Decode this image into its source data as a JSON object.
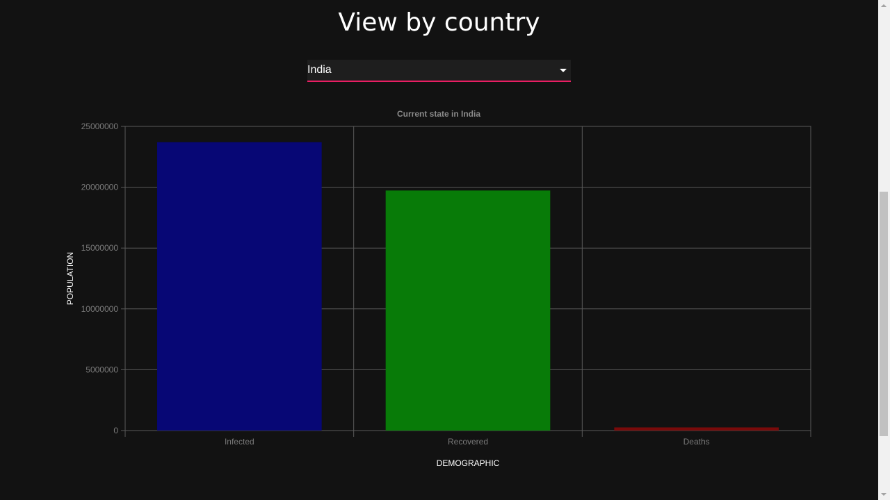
{
  "page": {
    "title": "View by country"
  },
  "country_select": {
    "value": "India"
  },
  "chart_data": {
    "type": "bar",
    "title": "Current state in India",
    "categories": [
      "Infected",
      "Recovered",
      "Deaths"
    ],
    "values": [
      23700000,
      19730000,
      258000
    ],
    "colors": [
      "#070775",
      "#087b08",
      "#7a0a0a"
    ],
    "xlabel": "DEMOGRAPHIC",
    "ylabel": "POPULATION",
    "ylim": [
      0,
      25000000
    ],
    "yticks": [
      0,
      5000000,
      10000000,
      15000000,
      20000000,
      25000000
    ],
    "ytick_labels": [
      "0",
      "5000000",
      "10000000",
      "15000000",
      "20000000",
      "25000000"
    ],
    "grid": true,
    "legend": "none"
  }
}
